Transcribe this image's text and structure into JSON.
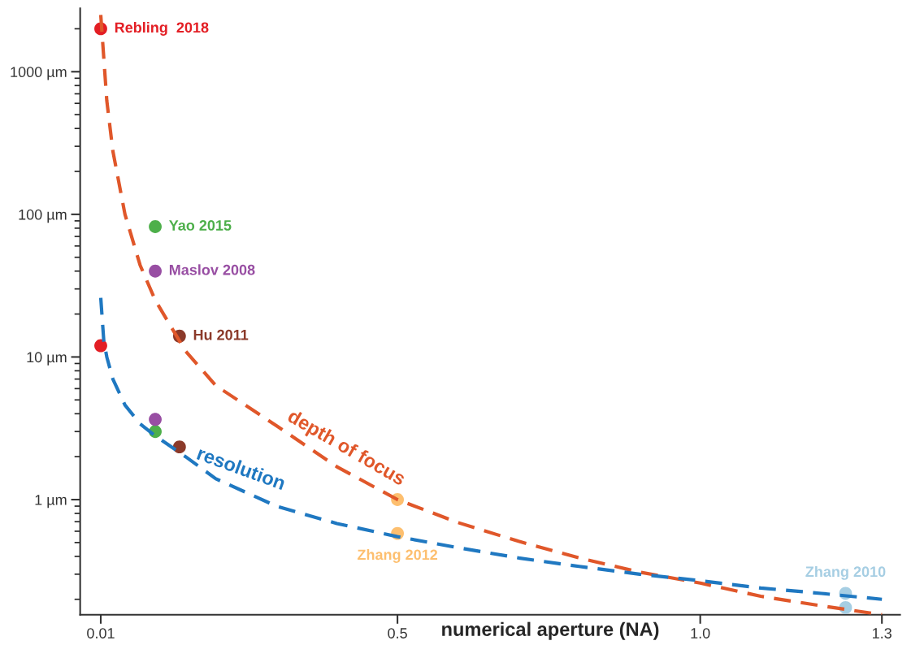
{
  "chart_data": {
    "type": "line",
    "xlabel": "numerical aperture (NA)",
    "log": "y",
    "grid": false,
    "legend": false,
    "xlim": [
      -0.024,
      1.33
    ],
    "ylim": [
      0.156,
      2780
    ],
    "xticks": [
      0.01,
      0.5,
      {
        "value": 1.0,
        "label": "1.0"
      },
      1.3
    ],
    "yticks": [
      {
        "value": 1,
        "label": "1 µm"
      },
      {
        "value": 10,
        "label": "10 µm"
      },
      {
        "value": 100,
        "label": "100 µm"
      },
      {
        "value": 1000,
        "label": "1000 µm"
      }
    ],
    "series": [
      {
        "name": "depth of focus",
        "line_style": "dashed",
        "marker": "none",
        "color": "#e0572a",
        "x": [
          0.01,
          0.02,
          0.03,
          0.05,
          0.075,
          0.1,
          0.15,
          0.2,
          0.3,
          0.4,
          0.5,
          0.6,
          0.7,
          0.8,
          0.9,
          1.0,
          1.1,
          1.2,
          1.3
        ],
        "values": [
          2500,
          625,
          278,
          100,
          44,
          25,
          11,
          6.3,
          3.3,
          1.7,
          1.0,
          0.69,
          0.51,
          0.39,
          0.31,
          0.26,
          0.21,
          0.18,
          0.156
        ]
      },
      {
        "name": "resolution",
        "line_style": "dashed",
        "marker": "none",
        "color": "#1f78c1",
        "x": [
          0.01,
          0.015,
          0.02,
          0.03,
          0.05,
          0.075,
          0.1,
          0.15,
          0.2,
          0.3,
          0.4,
          0.5,
          0.6,
          0.7,
          0.8,
          0.9,
          1.0,
          1.1,
          1.2,
          1.3
        ],
        "values": [
          26,
          13,
          10,
          7,
          4.6,
          3.4,
          2.8,
          2.0,
          1.4,
          0.9,
          0.68,
          0.55,
          0.46,
          0.39,
          0.34,
          0.3,
          0.27,
          0.24,
          0.22,
          0.2
        ]
      },
      {
        "name": "Rebling  2018",
        "type": "scatter",
        "marker": "circle",
        "color": "#e31e24",
        "x": [
          0.01,
          0.01
        ],
        "values": [
          2000,
          12
        ]
      },
      {
        "name": "Yao 2015",
        "type": "scatter",
        "marker": "circle",
        "color": "#4daf4a",
        "x": [
          0.1,
          0.1
        ],
        "values": [
          82,
          3.0
        ]
      },
      {
        "name": "Maslov 2008",
        "type": "scatter",
        "marker": "circle",
        "color": "#984ea3",
        "x": [
          0.1,
          0.1
        ],
        "values": [
          40,
          3.65
        ]
      },
      {
        "name": "Hu 2011",
        "type": "scatter",
        "marker": "circle",
        "color": "#8b3a2a",
        "x": [
          0.14,
          0.14
        ],
        "values": [
          14,
          2.34
        ]
      },
      {
        "name": "Zhang 2012",
        "type": "scatter",
        "marker": "circle",
        "color": "#fdbf6f",
        "x": [
          0.5,
          0.5
        ],
        "values": [
          1.0,
          0.58
        ]
      },
      {
        "name": "Zhang 2010",
        "type": "scatter",
        "marker": "circle",
        "color": "#a6cee3",
        "x": [
          1.24,
          1.24
        ],
        "values": [
          0.22,
          0.175
        ]
      }
    ]
  }
}
